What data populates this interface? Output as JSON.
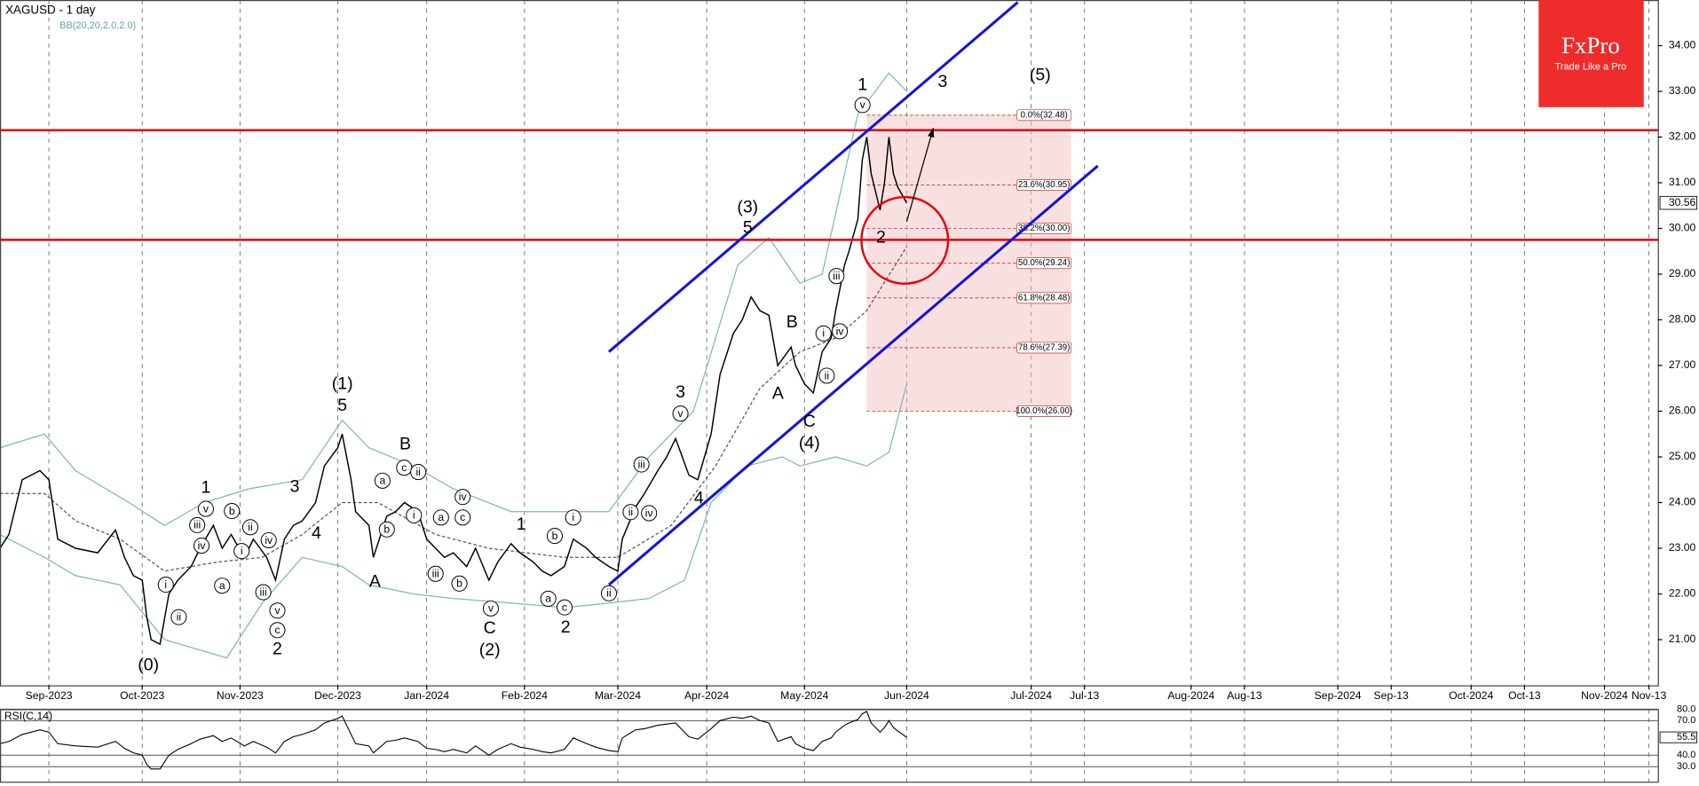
{
  "chart_data": {
    "type": "line",
    "title": "XAGUSD - 1 day",
    "indicator": "BB(20,20,2.0,2.0)",
    "logo": {
      "name": "FxPro",
      "tagline": "Trade Like a Pro",
      "color": "#ee2c2c"
    },
    "xlim": [
      0,
      373
    ],
    "ylim": [
      20,
      35
    ],
    "yticks": [
      {
        "value": 21,
        "label": "21.00"
      },
      {
        "value": 22,
        "label": "22.00"
      },
      {
        "value": 23,
        "label": "23.00"
      },
      {
        "value": 24,
        "label": "24.00"
      },
      {
        "value": 25,
        "label": "25.00"
      },
      {
        "value": 26,
        "label": "26.00"
      },
      {
        "value": 27,
        "label": "27.00"
      },
      {
        "value": 28,
        "label": "28.00"
      },
      {
        "value": 29,
        "label": "29.00"
      },
      {
        "value": 30,
        "label": "30.00"
      },
      {
        "value": 31,
        "label": "31.00"
      },
      {
        "value": 32,
        "label": "32.00"
      },
      {
        "value": 33,
        "label": "33.00"
      },
      {
        "value": 34,
        "label": "34.00"
      }
    ],
    "xticks": [
      {
        "value": 11,
        "label": "Sep-2023"
      },
      {
        "value": 32,
        "label": "Oct-2023"
      },
      {
        "value": 54,
        "label": "Nov-2023"
      },
      {
        "value": 76,
        "label": "Dec-2023"
      },
      {
        "value": 96,
        "label": "Jan-2024"
      },
      {
        "value": 118,
        "label": "Feb-2024"
      },
      {
        "value": 139,
        "label": "Mar-2024"
      },
      {
        "value": 159,
        "label": "Apr-2024"
      },
      {
        "value": 181,
        "label": "May-2024"
      },
      {
        "value": 204,
        "label": "Jun-2024"
      },
      {
        "value": 232,
        "label": "Jul-2024"
      },
      {
        "value": 244,
        "label": "Jul-13"
      },
      {
        "value": 268,
        "label": "Aug-2024"
      },
      {
        "value": 280,
        "label": "Aug-13"
      },
      {
        "value": 301,
        "label": "Sep-2024"
      },
      {
        "value": 313,
        "label": "Sep-13"
      },
      {
        "value": 331,
        "label": "Oct-2024"
      },
      {
        "value": 343,
        "label": "Oct-13"
      },
      {
        "value": 361,
        "label": "Nov-2024"
      },
      {
        "value": 371,
        "label": "Nov-13"
      }
    ],
    "grid": true,
    "series": [
      {
        "color": "#000000",
        "x": [
          0,
          2,
          5,
          9,
          11,
          13,
          17,
          22,
          26,
          28,
          30,
          32,
          33,
          34,
          36,
          38,
          40,
          43,
          45,
          48,
          50,
          52,
          55,
          57,
          60,
          62,
          64,
          66,
          68,
          71,
          73,
          76,
          77,
          79,
          80,
          83,
          84,
          87,
          89,
          91,
          94,
          96,
          98,
          100,
          102,
          105,
          107,
          110,
          112,
          115,
          117,
          120,
          122,
          124,
          127,
          129,
          132,
          134,
          137,
          139,
          140,
          143,
          145,
          148,
          150,
          152,
          155,
          157,
          160,
          162,
          165,
          167,
          169,
          171,
          173,
          175,
          178,
          179,
          181,
          183,
          185,
          187,
          188,
          190,
          191,
          193,
          194,
          195,
          196,
          198,
          199,
          200,
          201,
          202,
          204
        ],
        "values": [
          23.0,
          23.3,
          24.5,
          24.7,
          24.5,
          23.2,
          23.0,
          22.9,
          23.4,
          22.8,
          22.4,
          22.3,
          21.5,
          21.0,
          20.9,
          22.0,
          22.3,
          22.6,
          23.0,
          23.5,
          23.0,
          23.3,
          22.8,
          23.2,
          22.8,
          22.3,
          23.2,
          23.5,
          23.6,
          24.0,
          24.8,
          25.2,
          25.5,
          24.5,
          23.8,
          23.5,
          22.8,
          23.7,
          23.8,
          24.0,
          23.8,
          23.2,
          23.0,
          22.8,
          22.9,
          22.6,
          23.0,
          22.3,
          22.7,
          23.1,
          22.9,
          22.7,
          22.5,
          22.4,
          22.6,
          23.2,
          23.0,
          22.8,
          22.6,
          22.5,
          23.2,
          23.9,
          24.2,
          24.7,
          25.0,
          25.4,
          24.6,
          24.5,
          25.5,
          26.8,
          27.7,
          28.0,
          28.5,
          28.2,
          28.1,
          27.0,
          27.4,
          27.0,
          26.6,
          26.4,
          27.3,
          27.6,
          28.2,
          29.2,
          29.5,
          30.2,
          31.5,
          32.0,
          31.2,
          30.4,
          31.0,
          32.0,
          31.2,
          30.9,
          30.56
        ]
      }
    ],
    "bollinger": {
      "color": "#7fb5b5",
      "upper": {
        "x": [
          0,
          10,
          17,
          29,
          37,
          46,
          56,
          68,
          77,
          83,
          93,
          102,
          115,
          127,
          137,
          146,
          156,
          166,
          173,
          180,
          185,
          193,
          200,
          204
        ],
        "values": [
          25.2,
          25.5,
          24.7,
          24.0,
          23.5,
          24.0,
          24.3,
          24.5,
          25.8,
          25.2,
          24.8,
          24.3,
          23.8,
          23.8,
          23.8,
          25.0,
          26.0,
          29.2,
          29.8,
          28.8,
          29.0,
          32.5,
          33.4,
          33.0
        ]
      },
      "middle": {
        "x": [
          0,
          10,
          17,
          27,
          37,
          49,
          59,
          68,
          77,
          85,
          98,
          110,
          127,
          139,
          151,
          161,
          171,
          180,
          188,
          195,
          204
        ],
        "values": [
          24.2,
          24.2,
          23.6,
          23.2,
          22.5,
          22.7,
          22.8,
          23.3,
          24.0,
          24.0,
          23.3,
          23.0,
          22.8,
          22.8,
          23.5,
          24.8,
          26.5,
          27.3,
          27.6,
          28.2,
          29.6
        ]
      },
      "lower": {
        "x": [
          0,
          10,
          17,
          27,
          37,
          51,
          59,
          68,
          77,
          83,
          93,
          102,
          115,
          127,
          137,
          146,
          154,
          160,
          168,
          176,
          180,
          188,
          195,
          200,
          204
        ],
        "values": [
          23.3,
          22.8,
          22.4,
          22.2,
          21.0,
          20.6,
          21.8,
          22.8,
          22.6,
          22.2,
          22.0,
          21.9,
          21.8,
          21.7,
          21.8,
          21.9,
          22.3,
          24.0,
          24.8,
          25.0,
          24.8,
          25.0,
          24.8,
          25.1,
          26.6
        ]
      }
    },
    "levels": {
      "color": "#e8000b",
      "values": [
        32.15,
        29.75
      ]
    },
    "channel": {
      "color": "#1414d8",
      "lines": [
        {
          "x": [
            137,
            229
          ],
          "y": [
            27.3,
            34.95
          ]
        },
        {
          "x": [
            137,
            247
          ],
          "y": [
            22.2,
            31.37
          ]
        }
      ]
    },
    "projection": {
      "x": [
        204,
        210
      ],
      "y": [
        30.15,
        32.2
      ]
    },
    "fibonacci": {
      "x": [
        195,
        241
      ],
      "color": "#c0392b",
      "levels": [
        {
          "value": 32.48,
          "label": "0.0%(32.48)"
        },
        {
          "value": 30.95,
          "label": "23.6%(30.95)"
        },
        {
          "value": 30.0,
          "label": "38.2%(30.00)"
        },
        {
          "value": 29.24,
          "label": "50.0%(29.24)"
        },
        {
          "value": 28.48,
          "label": "61.8%(28.48)"
        },
        {
          "value": 27.39,
          "label": "78.6%(27.39)"
        },
        {
          "value": 26.0,
          "label": "100.0%(26.00)"
        }
      ]
    },
    "wave_labels": [
      "(0)",
      "(1)",
      "5",
      "(2)",
      "C",
      "(3)",
      "5",
      "(4)",
      "C",
      "(5)",
      "1",
      "3",
      "2",
      "A",
      "B",
      "A",
      "B",
      "1",
      "3",
      "4",
      "2",
      "3",
      "4",
      "1",
      "2"
    ],
    "circled_labels": [
      "v",
      "iii",
      "iv",
      "b",
      "ii",
      "iv",
      "i",
      "a",
      "i",
      "ii",
      "iii",
      "v",
      "c",
      "a",
      "b",
      "c",
      "ii",
      "i",
      "iv",
      "a",
      "c",
      "iii",
      "b",
      "v",
      "b",
      "i",
      "a",
      "c",
      "ii",
      "v",
      "iii",
      "ii",
      "iv",
      "v",
      "iii",
      "i",
      "iv",
      "ii"
    ],
    "rsi": {
      "title": "RSI(C,14)",
      "ylim": [
        17,
        80
      ],
      "yticks": [
        {
          "value": 30,
          "label": "30.0"
        },
        {
          "value": 40,
          "label": "40.0"
        },
        {
          "value": 70,
          "label": "70.0"
        },
        {
          "value": 80,
          "label": "80.0"
        }
      ],
      "values": [
        50,
        52,
        58,
        62,
        60,
        50,
        48,
        47,
        52,
        46,
        42,
        40,
        32,
        28,
        28,
        40,
        45,
        50,
        54,
        57,
        52,
        55,
        48,
        52,
        47,
        42,
        52,
        56,
        58,
        62,
        68,
        72,
        74,
        58,
        50,
        48,
        42,
        52,
        53,
        55,
        52,
        46,
        45,
        43,
        45,
        42,
        48,
        40,
        45,
        50,
        47,
        45,
        43,
        42,
        45,
        55,
        50,
        47,
        44,
        43,
        55,
        62,
        63,
        66,
        67,
        68,
        56,
        54,
        63,
        70,
        73,
        72,
        74,
        70,
        68,
        52,
        56,
        50,
        46,
        44,
        52,
        55,
        60,
        66,
        68,
        71,
        76,
        78,
        68,
        60,
        64,
        70,
        64,
        61,
        55.5
      ]
    }
  }
}
